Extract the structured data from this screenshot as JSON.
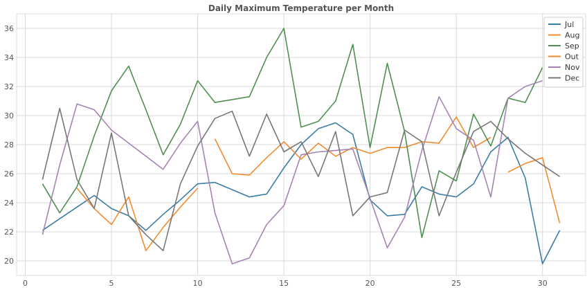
{
  "chart_data": {
    "type": "line",
    "title": "Daily Maximum Temperature per Month",
    "xlabel": "",
    "ylabel": "",
    "xlim": [
      -0.5,
      32.5
    ],
    "ylim": [
      19,
      37
    ],
    "x_ticks": [
      0,
      5,
      10,
      15,
      20,
      25,
      30
    ],
    "y_ticks": [
      20,
      22,
      24,
      26,
      28,
      30,
      32,
      34,
      36
    ],
    "grid": true,
    "legend_position": "top-right",
    "x": [
      1,
      2,
      3,
      4,
      5,
      6,
      7,
      8,
      9,
      10,
      11,
      12,
      13,
      14,
      15,
      16,
      17,
      18,
      19,
      20,
      21,
      22,
      23,
      24,
      25,
      26,
      27,
      28,
      29,
      30,
      31
    ],
    "series": [
      {
        "name": "Jul",
        "color": "#3a7ca5",
        "values": [
          22.1,
          22.9,
          23.7,
          24.5,
          23.6,
          23.1,
          22.1,
          23.2,
          24.2,
          25.3,
          25.4,
          24.9,
          24.4,
          24.6,
          26.4,
          28.0,
          29.1,
          29.5,
          28.7,
          24.2,
          23.1,
          23.2,
          25.1,
          24.6,
          24.4,
          25.3,
          27.5,
          28.5,
          25.7,
          19.8,
          22.1
        ]
      },
      {
        "name": "Aug",
        "color": "#f28a30",
        "values": [
          null,
          null,
          null,
          null,
          null,
          null,
          null,
          null,
          null,
          null,
          28.4,
          26.0,
          25.9,
          27.1,
          28.2,
          27.0,
          28.1,
          27.2,
          27.8,
          27.4,
          27.8,
          27.8,
          28.2,
          28.1,
          29.9,
          27.8,
          28.5,
          null,
          null,
          null,
          null
        ]
      },
      {
        "name": "Sep",
        "color": "#4f8f4f",
        "values": [
          25.3,
          23.3,
          25.1,
          28.6,
          31.7,
          33.4,
          30.4,
          27.3,
          29.4,
          32.4,
          30.9,
          31.1,
          31.3,
          34.0,
          36.0,
          29.2,
          29.6,
          31.0,
          34.9,
          27.8,
          33.6,
          28.9,
          21.6,
          26.2,
          25.5,
          30.1,
          27.9,
          31.2,
          30.9,
          33.3,
          null
        ]
      },
      {
        "name": "Out",
        "color": "#f28a30",
        "values": [
          null,
          null,
          25.0,
          23.6,
          22.5,
          24.4,
          20.7,
          22.3,
          23.7,
          25.0,
          null,
          null,
          null,
          null,
          null,
          null,
          null,
          null,
          null,
          null,
          null,
          null,
          null,
          null,
          null,
          null,
          null,
          26.1,
          26.7,
          27.1,
          22.6
        ]
      },
      {
        "name": "Nov",
        "color": "#a484b3",
        "values": [
          21.8,
          26.6,
          30.8,
          30.4,
          29.0,
          28.1,
          27.2,
          26.3,
          28.1,
          29.6,
          23.3,
          19.8,
          20.2,
          22.5,
          23.8,
          27.3,
          27.5,
          27.6,
          27.7,
          24.3,
          20.9,
          23.0,
          27.6,
          31.3,
          29.1,
          28.3,
          24.4,
          31.2,
          32.0,
          32.4,
          null
        ]
      },
      {
        "name": "Dec",
        "color": "#777777",
        "values": [
          25.6,
          30.5,
          25.6,
          23.6,
          28.8,
          23.1,
          21.8,
          20.7,
          25.3,
          27.9,
          29.8,
          30.3,
          27.2,
          30.1,
          27.5,
          28.2,
          25.8,
          28.9,
          23.1,
          24.4,
          24.7,
          29.0,
          28.2,
          23.1,
          26.1,
          28.9,
          29.6,
          28.4,
          27.4,
          26.6,
          25.8
        ]
      }
    ]
  }
}
